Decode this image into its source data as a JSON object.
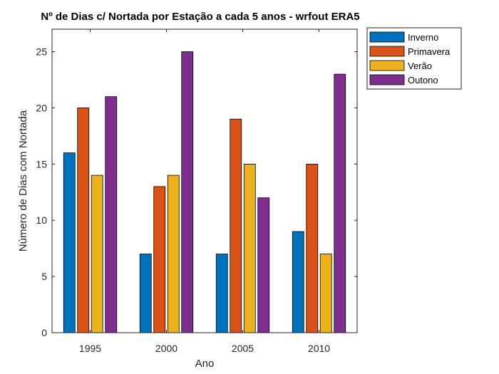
{
  "chart_data": {
    "type": "bar",
    "title": "Nº de Dias c/ Nortada por Estação a cada 5 anos - wrfout ERA5",
    "xlabel": "Ano",
    "ylabel": "Número de Dias com Nortada",
    "categories": [
      "1995",
      "2000",
      "2005",
      "2010"
    ],
    "ylim": [
      0,
      27
    ],
    "yticks": [
      0,
      5,
      10,
      15,
      20,
      25
    ],
    "grid": false,
    "legend_position": "top-right-outside",
    "series": [
      {
        "name": "Inverno",
        "color": "#0072BD",
        "values": [
          16,
          7,
          7,
          9
        ]
      },
      {
        "name": "Primavera",
        "color": "#D95319",
        "values": [
          20,
          13,
          19,
          15
        ]
      },
      {
        "name": "Verão",
        "color": "#EDB120",
        "values": [
          14,
          14,
          15,
          7
        ]
      },
      {
        "name": "Outono",
        "color": "#7E2F8E",
        "values": [
          21,
          25,
          12,
          23
        ]
      }
    ]
  }
}
